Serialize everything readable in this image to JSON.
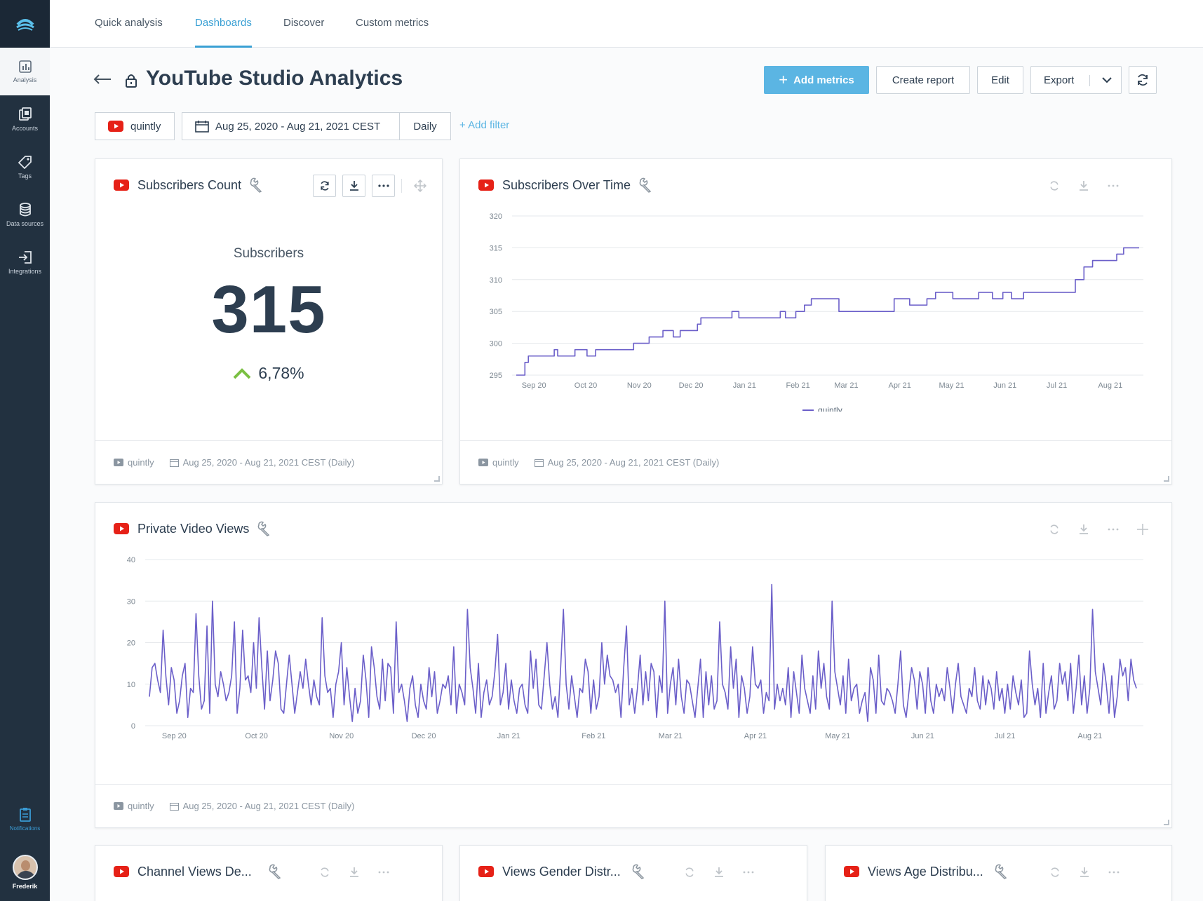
{
  "sidebar": {
    "items": [
      {
        "label": "Analysis",
        "icon": "analysis-icon"
      },
      {
        "label": "Accounts",
        "icon": "accounts-icon"
      },
      {
        "label": "Tags",
        "icon": "tag-icon"
      },
      {
        "label": "Data sources",
        "icon": "database-icon"
      },
      {
        "label": "Integrations",
        "icon": "integrations-icon"
      }
    ],
    "notifications_label": "Notifications",
    "user_label": "Frederik"
  },
  "nav": {
    "tabs": [
      {
        "label": "Quick analysis",
        "active": false
      },
      {
        "label": "Dashboards",
        "active": true
      },
      {
        "label": "Discover",
        "active": false
      },
      {
        "label": "Custom metrics",
        "active": false
      }
    ]
  },
  "header": {
    "title": "YouTube Studio Analytics",
    "add_metrics": "Add metrics",
    "create_report": "Create report",
    "edit": "Edit",
    "export": "Export"
  },
  "filters": {
    "account": "quintly",
    "date_range": "Aug 25, 2020 - Aug 21, 2021 CEST",
    "interval": "Daily",
    "add_filter": "+ Add filter"
  },
  "colors": {
    "accent": "#3aa0d4",
    "primary_button": "#5bb5e3",
    "series": "#6b5fc9",
    "youtube": "#e62117",
    "positive": "#7bc043"
  },
  "cards": {
    "subscribers_count": {
      "title": "Subscribers Count",
      "label": "Subscribers",
      "value": "315",
      "change": "6,78%",
      "change_direction": "up",
      "footer_account": "quintly",
      "footer_range": "Aug 25, 2020 - Aug 21, 2021 CEST (Daily)"
    },
    "subscribers_over_time": {
      "title": "Subscribers Over Time",
      "footer_account": "quintly",
      "footer_range": "Aug 25, 2020 - Aug 21, 2021 CEST (Daily)"
    },
    "private_video_views": {
      "title": "Private Video Views",
      "footer_account": "quintly",
      "footer_range": "Aug 25, 2020 - Aug 21, 2021 CEST (Daily)"
    },
    "channel_views": {
      "title": "Channel Views De..."
    },
    "gender": {
      "title": "Views Gender Distr..."
    },
    "age": {
      "title": "Views Age Distribu..."
    }
  },
  "chart_data": [
    {
      "type": "line",
      "ylim": [
        295,
        320
      ],
      "yticks": [
        295,
        300,
        305,
        310,
        315,
        320
      ],
      "xticks": [
        "Sep 20",
        "Oct 20",
        "Nov 20",
        "Dec 20",
        "Jan 21",
        "Feb 21",
        "Mar 21",
        "Apr 21",
        "May 21",
        "Jun 21",
        "Jul 21",
        "Aug 21"
      ],
      "grid": true,
      "legend": "bottom",
      "series": [
        {
          "name": "quintly",
          "points": [
            [
              "2020-08-25",
              295
            ],
            [
              "2020-08-30",
              297
            ],
            [
              "2020-09-01",
              298
            ],
            [
              "2020-09-15",
              298
            ],
            [
              "2020-09-16",
              299
            ],
            [
              "2020-09-18",
              298
            ],
            [
              "2020-09-28",
              299
            ],
            [
              "2020-10-05",
              298
            ],
            [
              "2020-10-10",
              299
            ],
            [
              "2020-11-01",
              300
            ],
            [
              "2020-11-10",
              301
            ],
            [
              "2020-11-18",
              302
            ],
            [
              "2020-11-24",
              301
            ],
            [
              "2020-11-28",
              302
            ],
            [
              "2020-12-08",
              303
            ],
            [
              "2020-12-10",
              304
            ],
            [
              "2020-12-28",
              305
            ],
            [
              "2021-01-01",
              304
            ],
            [
              "2021-01-15",
              304
            ],
            [
              "2021-01-25",
              305
            ],
            [
              "2021-01-28",
              304
            ],
            [
              "2021-02-03",
              305
            ],
            [
              "2021-02-08",
              306
            ],
            [
              "2021-02-12",
              307
            ],
            [
              "2021-02-28",
              305
            ],
            [
              "2021-04-01",
              307
            ],
            [
              "2021-04-10",
              306
            ],
            [
              "2021-04-20",
              307
            ],
            [
              "2021-04-25",
              308
            ],
            [
              "2021-05-05",
              307
            ],
            [
              "2021-05-20",
              308
            ],
            [
              "2021-05-28",
              307
            ],
            [
              "2021-06-03",
              308
            ],
            [
              "2021-06-08",
              307
            ],
            [
              "2021-06-15",
              308
            ],
            [
              "2021-07-15",
              310
            ],
            [
              "2021-07-20",
              312
            ],
            [
              "2021-07-25",
              313
            ],
            [
              "2021-08-08",
              314
            ],
            [
              "2021-08-12",
              315
            ],
            [
              "2021-08-21",
              315
            ]
          ]
        }
      ]
    },
    {
      "type": "line",
      "ylim": [
        0,
        40
      ],
      "yticks": [
        0,
        10,
        20,
        30,
        40
      ],
      "xticks": [
        "Sep 20",
        "Oct 20",
        "Nov 20",
        "Dec 20",
        "Jan 21",
        "Feb 21",
        "Mar 21",
        "Apr 21",
        "May 21",
        "Jun 21",
        "Jul 21",
        "Aug 21"
      ],
      "grid": true,
      "legend": "bottom",
      "series": [
        {
          "name": "quintly",
          "values": [
            7,
            14,
            15,
            11,
            8,
            23,
            12,
            5,
            14,
            11,
            3,
            6,
            12,
            15,
            2,
            9,
            8,
            27,
            12,
            4,
            6,
            24,
            3,
            30,
            10,
            7,
            13,
            10,
            6,
            8,
            12,
            25,
            3,
            9,
            23,
            11,
            12,
            8,
            20,
            9,
            26,
            14,
            4,
            18,
            6,
            11,
            18,
            15,
            4,
            3,
            10,
            17,
            10,
            3,
            8,
            13,
            9,
            16,
            10,
            5,
            11,
            7,
            5,
            26,
            12,
            8,
            9,
            2,
            10,
            13,
            20,
            5,
            14,
            7,
            1,
            9,
            3,
            6,
            17,
            11,
            2,
            19,
            14,
            7,
            4,
            16,
            6,
            15,
            14,
            3,
            25,
            8,
            10,
            6,
            1,
            9,
            12,
            5,
            2,
            10,
            6,
            4,
            14,
            7,
            13,
            3,
            6,
            10,
            9,
            12,
            5,
            19,
            3,
            10,
            8,
            5,
            28,
            14,
            9,
            3,
            15,
            2,
            8,
            11,
            5,
            7,
            13,
            22,
            5,
            8,
            15,
            4,
            11,
            6,
            3,
            9,
            10,
            5,
            3,
            18,
            9,
            16,
            5,
            4,
            12,
            20,
            10,
            4,
            7,
            2,
            14,
            28,
            10,
            4,
            12,
            7,
            2,
            9,
            8,
            16,
            13,
            3,
            11,
            4,
            7,
            20,
            10,
            17,
            12,
            11,
            8,
            10,
            2,
            14,
            24,
            5,
            9,
            3,
            9,
            17,
            5,
            13,
            6,
            15,
            13,
            2,
            12,
            8,
            30,
            3,
            10,
            14,
            5,
            16,
            7,
            3,
            11,
            10,
            6,
            2,
            9,
            16,
            2,
            13,
            5,
            12,
            4,
            6,
            25,
            10,
            8,
            4,
            19,
            9,
            16,
            2,
            12,
            9,
            3,
            7,
            19,
            10,
            9,
            11,
            3,
            8,
            6,
            34,
            4,
            10,
            6,
            9,
            5,
            14,
            2,
            13,
            8,
            3,
            17,
            9,
            6,
            3,
            12,
            4,
            18,
            9,
            15,
            7,
            4,
            30,
            13,
            9,
            5,
            12,
            3,
            16,
            6,
            9,
            10,
            3,
            6,
            8,
            1,
            14,
            11,
            3,
            17,
            6,
            5,
            9,
            8,
            6,
            3,
            10,
            18,
            5,
            2,
            8,
            14,
            11,
            4,
            13,
            10,
            3,
            14,
            6,
            3,
            10,
            7,
            9,
            6,
            14,
            9,
            3,
            10,
            15,
            7,
            5,
            3,
            9,
            7,
            14,
            6,
            4,
            12,
            5,
            11,
            9,
            4,
            13,
            6,
            9,
            3,
            10,
            4,
            12,
            8,
            5,
            11,
            2,
            3,
            18,
            10,
            5,
            9,
            2,
            15,
            3,
            8,
            12,
            4,
            6,
            15,
            10,
            13,
            6,
            15,
            3,
            9,
            17,
            5,
            12,
            3,
            9,
            28,
            13,
            9,
            5,
            15,
            10,
            3,
            12,
            2,
            7,
            16,
            12,
            14,
            6,
            16,
            11,
            9
          ]
        }
      ]
    }
  ]
}
